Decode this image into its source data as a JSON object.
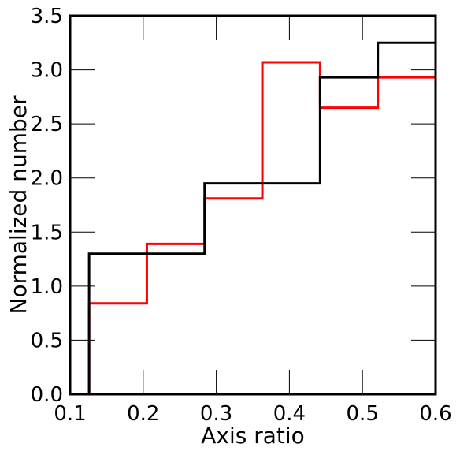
{
  "chart_data": {
    "type": "histogram-step",
    "title": "",
    "xlabel": "Axis ratio",
    "ylabel": "Normalized number",
    "xlim": [
      0.1,
      0.6
    ],
    "ylim": [
      0.0,
      3.5
    ],
    "xticks": [
      "0.1",
      "0.2",
      "0.3",
      "0.4",
      "0.5",
      "0.6"
    ],
    "yticks": [
      "0.0",
      "0.5",
      "1.0",
      "1.5",
      "2.0",
      "2.5",
      "3.0",
      "3.5"
    ],
    "grid": false,
    "legend": "none",
    "bin_edges": [
      0.126,
      0.205,
      0.284,
      0.363,
      0.442,
      0.521,
      0.6
    ],
    "series": [
      {
        "color": "#ff0000",
        "values": [
          0.84,
          1.39,
          1.81,
          3.07,
          2.65,
          2.93
        ]
      },
      {
        "color": "#000000",
        "values": [
          1.3,
          1.3,
          1.95,
          1.95,
          2.93,
          3.25
        ]
      }
    ]
  }
}
